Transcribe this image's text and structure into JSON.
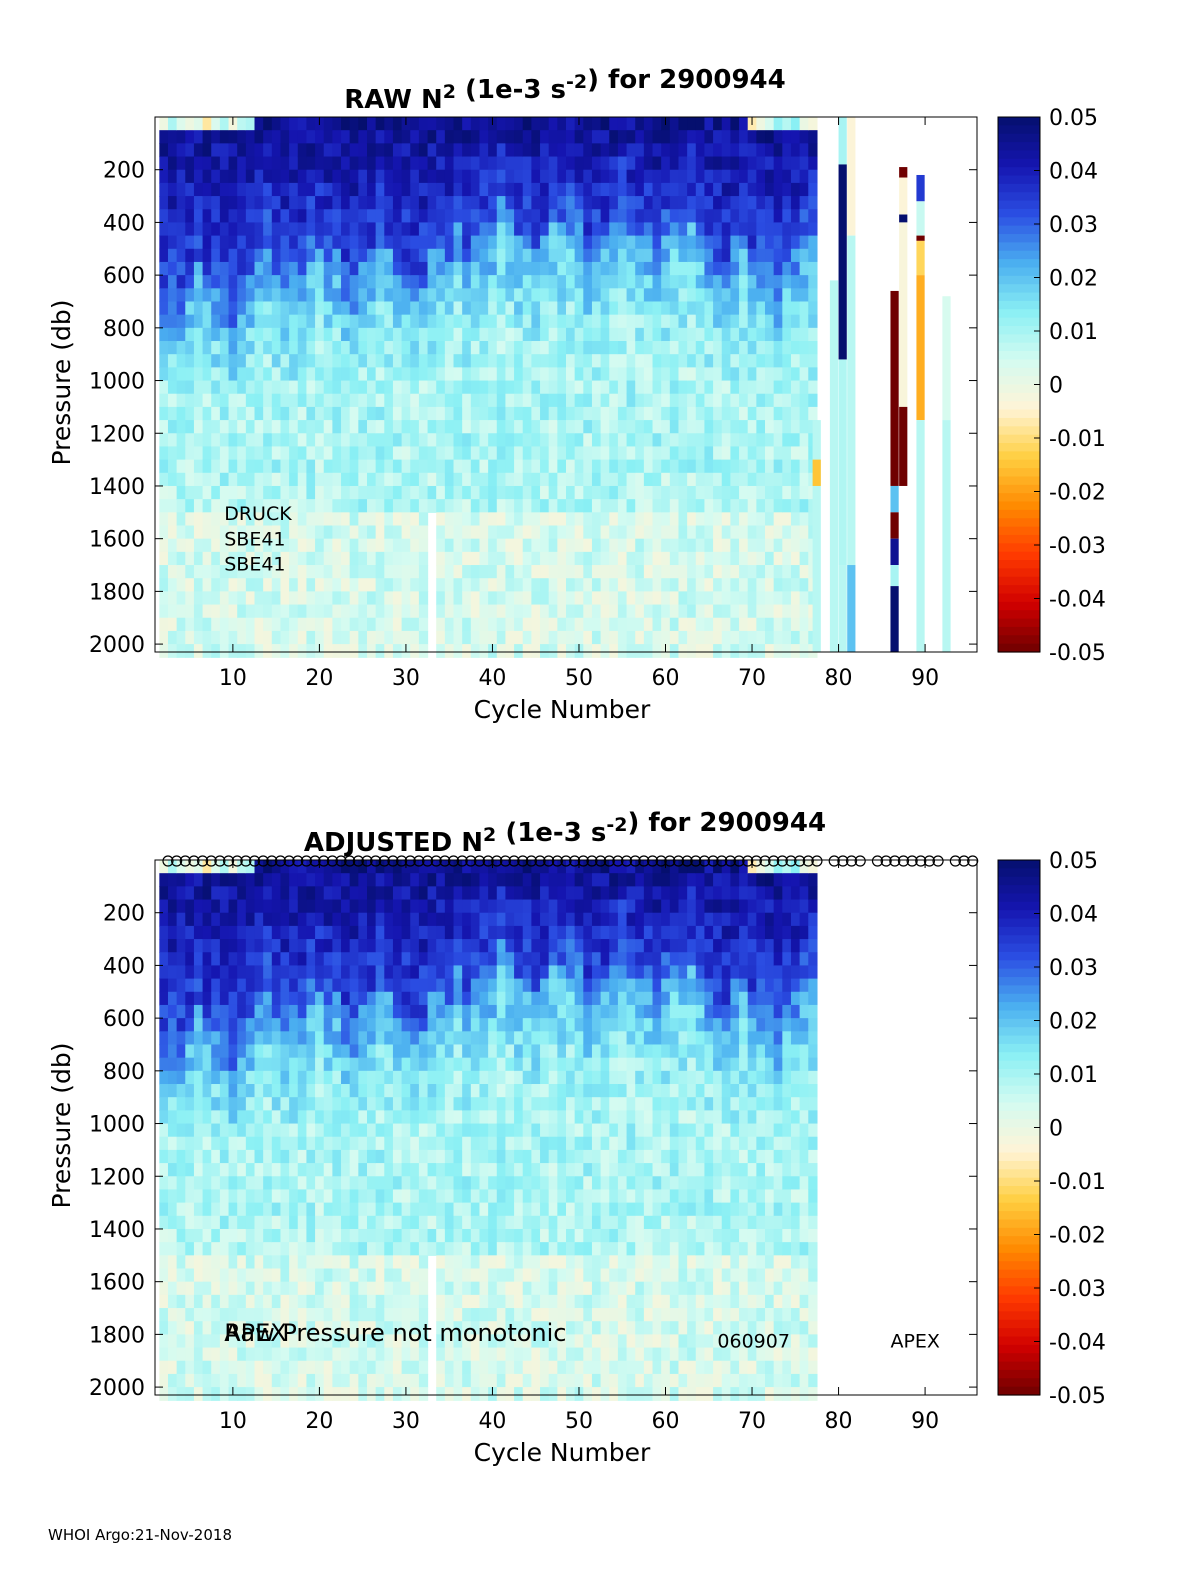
{
  "footer": "WHOI Argo:21-Nov-2018",
  "colors": {
    "background": "#ffffff",
    "axis": "#000000",
    "colormap": [
      "#6f0000",
      "#d10000",
      "#ff3a00",
      "#ff8a00",
      "#ffcf40",
      "#fff4d6",
      "#d4fbf1",
      "#8af0f4",
      "#4aaef0",
      "#2b4ee3",
      "#1515b0",
      "#050f6e"
    ]
  },
  "chart_data": [
    {
      "id": "raw",
      "type": "heatmap",
      "title_main": "RAW N",
      "title_sup1": "2",
      "title_mid": " (1e-3 s",
      "title_sup2": "-2",
      "title_end": ") for 2900944",
      "xlabel": "Cycle Number",
      "ylabel": "Pressure (db)",
      "xlim": [
        1,
        96
      ],
      "ylim": [
        0,
        2030
      ],
      "y_reversed": true,
      "xticks": [
        10,
        20,
        30,
        40,
        50,
        60,
        70,
        80,
        90
      ],
      "yticks": [
        200,
        400,
        600,
        800,
        1000,
        1200,
        1400,
        1600,
        1800,
        2000
      ],
      "clim": [
        -0.05,
        0.05
      ],
      "colorbar_ticks": [
        "0.05",
        "0.04",
        "0.03",
        "0.02",
        "0.01",
        "0",
        "-0.01",
        "-0.02",
        "-0.03",
        "-0.04",
        "-0.05"
      ],
      "annotations": [
        {
          "text": "DRUCK",
          "x": 9,
          "p": 1530
        },
        {
          "text": "SBE41",
          "x": 9,
          "p": 1625
        },
        {
          "text": "SBE41",
          "x": 9,
          "p": 1720
        }
      ],
      "field": {
        "cycle_start": 1,
        "cycle_end": 76,
        "dp": 50,
        "gap_cycle": 32,
        "gap_from": 1500
      },
      "sparse_columns": [
        {
          "cycle": 77,
          "segments": [
            {
              "p0": 1150,
              "p1": 2030,
              "v": 0.008
            },
            {
              "p0": 1300,
              "p1": 1400,
              "v": -0.015
            }
          ]
        },
        {
          "cycle": 79,
          "segments": [
            {
              "p0": 620,
              "p1": 2030,
              "v": 0.008
            }
          ]
        },
        {
          "cycle": 80,
          "segments": [
            {
              "p0": 0,
              "p1": 180,
              "v": 0.01
            },
            {
              "p0": 180,
              "p1": 920,
              "v": 0.05
            },
            {
              "p0": 920,
              "p1": 1700,
              "v": 0.009
            },
            {
              "p0": 1700,
              "p1": 2030,
              "v": 0.008
            }
          ]
        },
        {
          "cycle": 81,
          "segments": [
            {
              "p0": 0,
              "p1": 450,
              "v": -0.004
            },
            {
              "p0": 450,
              "p1": 1700,
              "v": 0.008
            },
            {
              "p0": 1700,
              "p1": 2030,
              "v": 0.02
            }
          ]
        },
        {
          "cycle": 86,
          "segments": [
            {
              "p0": 660,
              "p1": 1400,
              "v": -0.05
            },
            {
              "p0": 1400,
              "p1": 1500,
              "v": 0.02
            },
            {
              "p0": 1500,
              "p1": 1600,
              "v": -0.05
            },
            {
              "p0": 1600,
              "p1": 1700,
              "v": 0.045
            },
            {
              "p0": 1700,
              "p1": 1780,
              "v": 0.01
            },
            {
              "p0": 1780,
              "p1": 2030,
              "v": 0.05
            }
          ]
        },
        {
          "cycle": 87,
          "segments": [
            {
              "p0": 190,
              "p1": 230,
              "v": -0.05
            },
            {
              "p0": 230,
              "p1": 370,
              "v": -0.004
            },
            {
              "p0": 370,
              "p1": 400,
              "v": 0.05
            },
            {
              "p0": 400,
              "p1": 1100,
              "v": -0.003
            },
            {
              "p0": 1100,
              "p1": 1400,
              "v": -0.05
            }
          ]
        },
        {
          "cycle": 89,
          "segments": [
            {
              "p0": 220,
              "p1": 320,
              "v": 0.035
            },
            {
              "p0": 320,
              "p1": 450,
              "v": 0.006
            },
            {
              "p0": 450,
              "p1": 470,
              "v": -0.05
            },
            {
              "p0": 470,
              "p1": 600,
              "v": -0.012
            },
            {
              "p0": 600,
              "p1": 1150,
              "v": -0.018
            },
            {
              "p0": 1150,
              "p1": 2030,
              "v": 0.008
            }
          ]
        },
        {
          "cycle": 92,
          "segments": [
            {
              "p0": 680,
              "p1": 1150,
              "v": 0.004
            },
            {
              "p0": 1150,
              "p1": 2030,
              "v": 0.008
            }
          ]
        }
      ]
    },
    {
      "id": "adjusted",
      "type": "heatmap",
      "title_main": "ADJUSTED N",
      "title_sup1": "2",
      "title_mid": " (1e-3 s",
      "title_sup2": "-2",
      "title_end": ") for 2900944",
      "xlabel": "Cycle Number",
      "ylabel": "Pressure (db)",
      "xlim": [
        1,
        96
      ],
      "ylim": [
        0,
        2030
      ],
      "y_reversed": true,
      "xticks": [
        10,
        20,
        30,
        40,
        50,
        60,
        70,
        80,
        90
      ],
      "yticks": [
        200,
        400,
        600,
        800,
        1000,
        1200,
        1400,
        1600,
        1800,
        2000
      ],
      "clim": [
        -0.05,
        0.05
      ],
      "colorbar_ticks": [
        "0.05",
        "0.04",
        "0.03",
        "0.02",
        "0.01",
        "0",
        "-0.01",
        "-0.02",
        "-0.03",
        "-0.04",
        "-0.05"
      ],
      "annotations": [
        {
          "text": "Raw Pressure not monotonic",
          "x": 9,
          "p": 1825,
          "size": 24
        },
        {
          "text": "APEX",
          "x": 9,
          "p": 1825,
          "size": 24
        },
        {
          "text": "060907",
          "x": 66,
          "p": 1850,
          "size": 19
        },
        {
          "text": "APEX",
          "x": 86,
          "p": 1850,
          "size": 19
        }
      ],
      "marker_cycles": [
        2,
        3,
        4,
        5,
        6,
        7,
        8,
        9,
        10,
        11,
        12,
        13,
        14,
        15,
        16,
        17,
        18,
        19,
        20,
        21,
        22,
        23,
        24,
        25,
        26,
        27,
        28,
        29,
        30,
        31,
        32,
        33,
        34,
        35,
        36,
        37,
        38,
        39,
        40,
        41,
        42,
        43,
        44,
        45,
        46,
        47,
        48,
        49,
        50,
        51,
        52,
        53,
        54,
        55,
        56,
        57,
        58,
        59,
        60,
        61,
        62,
        63,
        64,
        65,
        66,
        67,
        68,
        69,
        70,
        71,
        72,
        73,
        74,
        75,
        76,
        77,
        79,
        80,
        81,
        82,
        84,
        85,
        86,
        87,
        88,
        89,
        90,
        91,
        93,
        94,
        95
      ],
      "field": {
        "cycle_start": 1,
        "cycle_end": 76,
        "dp": 50,
        "gap_cycle": 32,
        "gap_from": 1500
      },
      "sparse_columns": []
    }
  ]
}
